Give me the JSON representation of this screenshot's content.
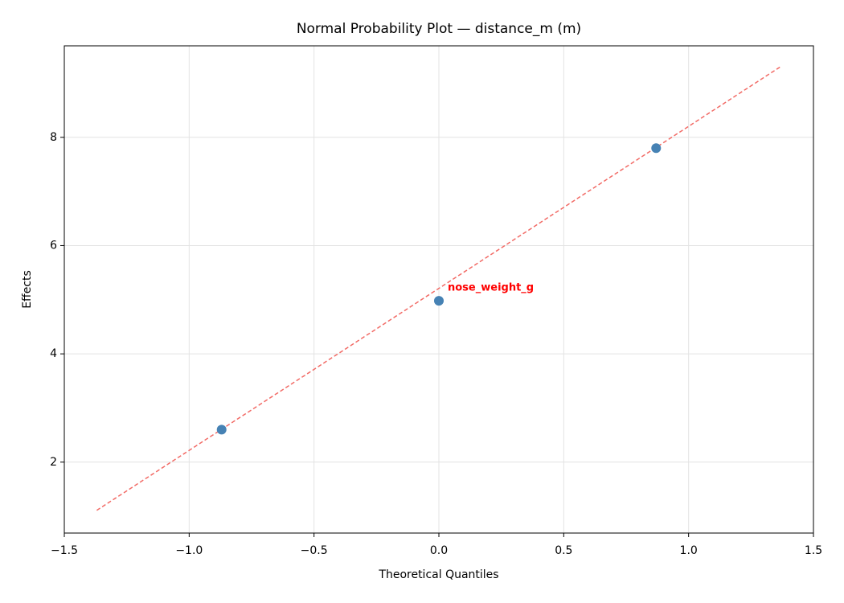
{
  "chart_data": {
    "type": "scatter",
    "title": "Normal Probability Plot — distance_m (m)",
    "x_label": "Theoretical Quantiles",
    "y_label": "Effects",
    "xlim": [
      -1.5,
      1.5
    ],
    "ylim": [
      0.69,
      9.69
    ],
    "xticks": [
      {
        "value": -1.5,
        "label": "−1.5"
      },
      {
        "value": -1.0,
        "label": "−1.0"
      },
      {
        "value": -0.5,
        "label": "−0.5"
      },
      {
        "value": 0,
        "label": "0.0"
      },
      0.5,
      {
        "value": 1.0,
        "label": "1.0"
      },
      1.5
    ],
    "yticks": [
      2,
      4,
      6,
      8
    ],
    "grid": true,
    "series": [
      {
        "color": "#4682b4",
        "x": [
          -0.87,
          0,
          0.87
        ],
        "y": [
          2.6,
          4.98,
          7.8
        ],
        "point_labels": [
          null,
          "nose_weight_g",
          null
        ],
        "label_color": "#ff0000"
      }
    ],
    "reference_line": {
      "color": "#f26b66",
      "style": "dashed",
      "x": [
        -1.37,
        1.37
      ],
      "y": [
        1.11,
        9.31
      ]
    }
  }
}
